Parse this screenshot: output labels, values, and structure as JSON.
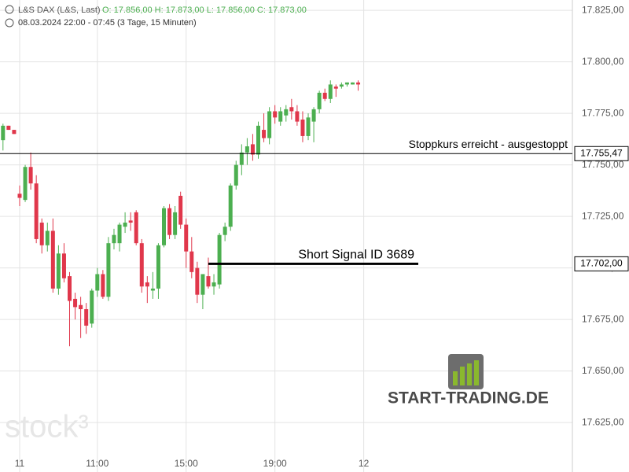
{
  "header": {
    "symbol": "L&S DAX (L&S, Last)",
    "ohlc": "O: 17.856,00  H: 17.873,00  L: 17.856,00  C: 17.873,00",
    "range": "08.03.2024 22:00 - 07:45  (3 Tage, 15 Minuten)"
  },
  "watermarks": {
    "left": "stock³",
    "right": "START-TRADING.DE"
  },
  "chart_data": {
    "type": "candlestick",
    "up_color": "#4caf50",
    "down_color": "#e0374b",
    "grid": true,
    "x": [
      0,
      1,
      2,
      3,
      4,
      5,
      6,
      7,
      8,
      9,
      10,
      11,
      12,
      13,
      14,
      15,
      16,
      17,
      18,
      19,
      20,
      21,
      22,
      23,
      24,
      25,
      26,
      27,
      28,
      29,
      30,
      31,
      32,
      33,
      34,
      35,
      36,
      37,
      38,
      39,
      40,
      41,
      42,
      43,
      44,
      45,
      46,
      47,
      48,
      49,
      50,
      51,
      52,
      53,
      54,
      55,
      56,
      57,
      58,
      59,
      60,
      61,
      62,
      63,
      64
    ],
    "series": [
      {
        "open": [
          17762,
          17769,
          17767,
          17736,
          17733,
          17749,
          17741,
          17722,
          17711,
          17718,
          17690,
          17707,
          17696,
          17685,
          17682,
          17680,
          17673,
          17689,
          17697,
          17686,
          17712,
          17712,
          17720,
          17723,
          17727,
          17712,
          17693,
          17689,
          17690,
          17711,
          17729,
          17716,
          17735,
          17721,
          17708,
          17700,
          17687,
          17696,
          17691,
          17692,
          17716,
          17720,
          17740,
          17750,
          17756,
          17760,
          17755,
          17767,
          17763,
          17776,
          17771,
          17774,
          17778,
          17776,
          17772,
          17764,
          17771,
          17777,
          17785,
          17782,
          17788,
          17788,
          17789,
          17789,
          17790
        ],
        "high": [
          17770,
          17769,
          17767,
          17740,
          17750,
          17756,
          17745,
          17724,
          17722,
          17724,
          17711,
          17712,
          17698,
          17688,
          17686,
          17683,
          17690,
          17700,
          17699,
          17715,
          17719,
          17722,
          17727,
          17727,
          17728,
          17714,
          17696,
          17698,
          17712,
          17730,
          17731,
          17730,
          17737,
          17724,
          17715,
          17703,
          17697,
          17705,
          17697,
          17717,
          17722,
          17741,
          17752,
          17760,
          17763,
          17765,
          17771,
          17775,
          17778,
          17779,
          17778,
          17779,
          17782,
          17779,
          17776,
          17775,
          17778,
          17786,
          17787,
          17791,
          17789,
          17790,
          17790,
          17790,
          17791
        ],
        "low": [
          17757,
          17767,
          17765,
          17730,
          17732,
          17738,
          17712,
          17707,
          17708,
          17688,
          17687,
          17693,
          17662,
          17675,
          17666,
          17668,
          17671,
          17686,
          17685,
          17684,
          17709,
          17708,
          17717,
          17718,
          17711,
          17688,
          17683,
          17685,
          17685,
          17710,
          17714,
          17714,
          17719,
          17700,
          17695,
          17683,
          17680,
          17690,
          17687,
          17690,
          17713,
          17718,
          17738,
          17745,
          17750,
          17752,
          17753,
          17761,
          17760,
          17770,
          17769,
          17771,
          17772,
          17769,
          17761,
          17762,
          17761,
          17775,
          17781,
          17780,
          17783,
          17787,
          17788,
          17789,
          17786
        ],
        "close": [
          17769,
          17767,
          17765,
          17734,
          17749,
          17741,
          17714,
          17711,
          17718,
          17690,
          17707,
          17695,
          17684,
          17681,
          17680,
          17672,
          17689,
          17697,
          17686,
          17712,
          17716,
          17721,
          17722,
          17722,
          17712,
          17691,
          17691,
          17690,
          17711,
          17729,
          17716,
          17727,
          17721,
          17708,
          17698,
          17687,
          17697,
          17691,
          17693,
          17716,
          17720,
          17740,
          17750,
          17756,
          17759,
          17755,
          17769,
          17763,
          17776,
          17773,
          17776,
          17777,
          17776,
          17771,
          17764,
          17773,
          17777,
          17785,
          17782,
          17789,
          17787,
          17789,
          17790,
          17790,
          17789
        ]
      }
    ],
    "xlim": [
      -0.54,
      102.6
    ],
    "xticks": [
      {
        "value": 3,
        "label": "11"
      },
      {
        "value": 17,
        "label": "11:00"
      },
      {
        "value": 33,
        "label": "15:00"
      },
      {
        "value": 49,
        "label": "19:00"
      },
      {
        "value": 65,
        "label": "12"
      }
    ],
    "ylim": [
      17601,
      17830
    ],
    "yticks": [
      {
        "value": 17625,
        "label": "17.625,00"
      },
      {
        "value": 17650,
        "label": "17.650,00"
      },
      {
        "value": 17675,
        "label": "17.675,00"
      },
      {
        "value": 17700,
        "label": "17.700,00"
      },
      {
        "value": 17725,
        "label": "17.725,00"
      },
      {
        "value": 17750,
        "label": "17.750,00"
      },
      {
        "value": 17775,
        "label": "17.775,00"
      },
      {
        "value": 17800,
        "label": "17.800,00"
      },
      {
        "value": 17825,
        "label": "17.825,00"
      }
    ],
    "levels": [
      {
        "value": 17755.47,
        "label": "17.755,47",
        "text": "Stoppkurs erreicht - ausgestoppt"
      },
      {
        "value": 17702,
        "label": "17.702,00",
        "text": "Short Signal  ID 3689"
      }
    ]
  }
}
